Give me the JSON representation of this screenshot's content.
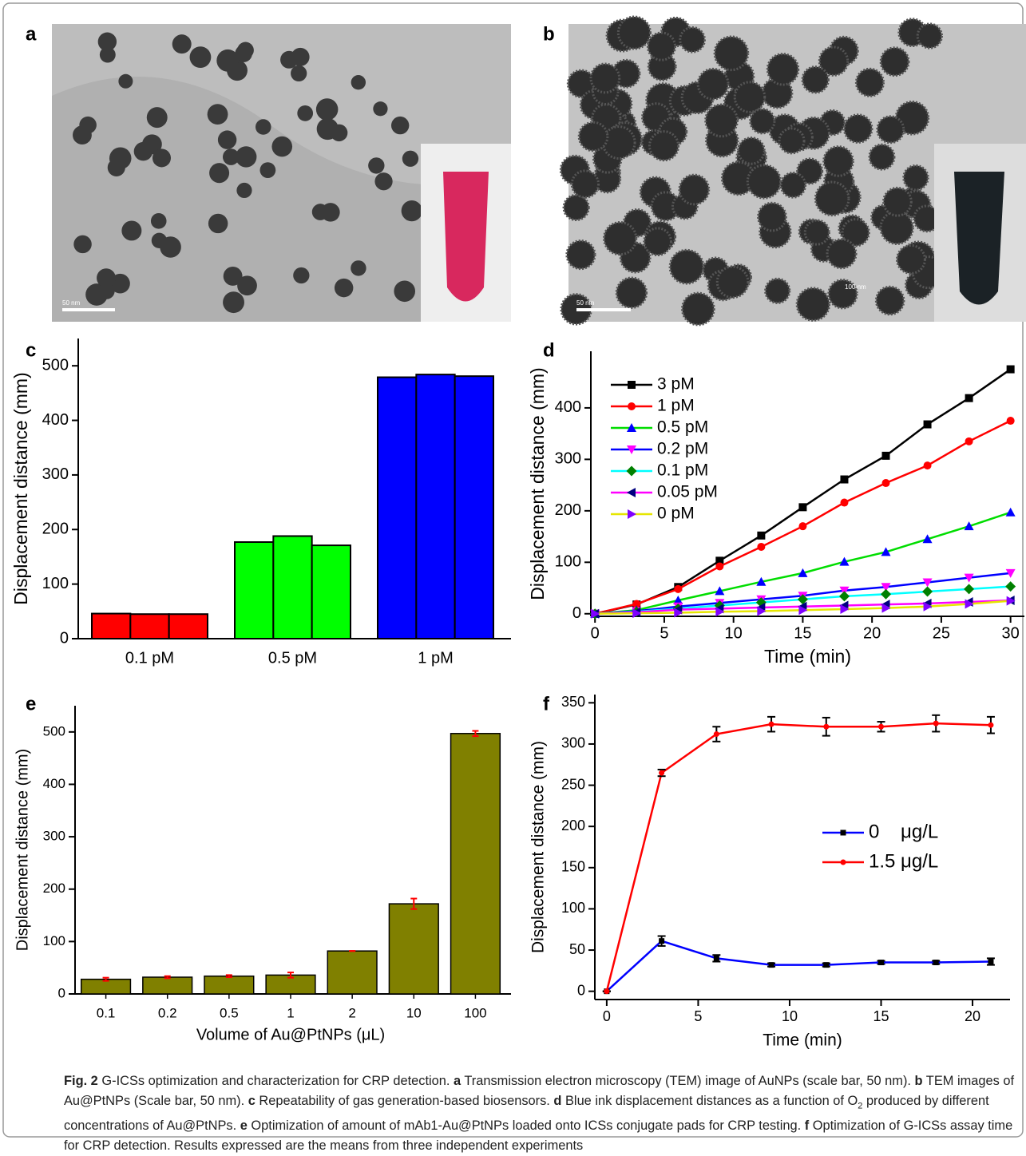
{
  "images": [
    {
      "label": "a",
      "scale_bar": "50 nm"
    },
    {
      "label": "b",
      "scale_bar": "50 nm",
      "marker_text": "100 nm"
    }
  ],
  "chart_data": [
    {
      "label": "c",
      "type": "bar",
      "categories": [
        "0.1 pM",
        "0.5 pM",
        "1 pM"
      ],
      "values": [
        [
          46,
          45,
          45
        ],
        [
          177,
          188,
          171
        ],
        [
          479,
          484,
          481
        ]
      ],
      "colors": [
        "#ff0000",
        "#00ff00",
        "#0000ff"
      ],
      "ylabel": "Displacement distance (mm)",
      "ylim": [
        0,
        550
      ],
      "yticks": [
        0,
        100,
        200,
        300,
        400,
        500
      ]
    },
    {
      "label": "d",
      "type": "line",
      "xlabel": "Time (min)",
      "ylabel": "Displacement distance (mm)",
      "x": [
        0,
        3,
        6,
        9,
        12,
        15,
        18,
        21,
        24,
        27,
        30
      ],
      "xlim": [
        -0.3,
        31
      ],
      "xticks": [
        0,
        5,
        10,
        15,
        20,
        25,
        30
      ],
      "ylim": [
        -5,
        510
      ],
      "yticks": [
        0,
        100,
        200,
        300,
        400
      ],
      "series": [
        {
          "name": "3 pM",
          "color": "#000000",
          "marker_color": "#000000",
          "marker": "square",
          "values": [
            0,
            18,
            52,
            103,
            152,
            207,
            261,
            307,
            368,
            419,
            475
          ]
        },
        {
          "name": "1 pM",
          "color": "#ff0000",
          "marker_color": "#ff0000",
          "marker": "circle",
          "values": [
            0,
            19,
            48,
            92,
            130,
            170,
            216,
            254,
            288,
            335,
            375
          ]
        },
        {
          "name": "0.5 pM",
          "color": "#00dd00",
          "marker_color": "#0000ff",
          "marker": "up",
          "values": [
            0,
            7,
            26,
            44,
            62,
            79,
            101,
            120,
            145,
            170,
            197
          ]
        },
        {
          "name": "0.2 pM",
          "color": "#0000ff",
          "marker_color": "#ff00ff",
          "marker": "down",
          "values": [
            0,
            5,
            14,
            21,
            28,
            35,
            45,
            52,
            61,
            70,
            79
          ]
        },
        {
          "name": "0.1 pM",
          "color": "#00ffff",
          "marker_color": "#008000",
          "marker": "diamond",
          "values": [
            0,
            4,
            10,
            16,
            22,
            28,
            34,
            38,
            43,
            48,
            53
          ]
        },
        {
          "name": "0.05 pM",
          "color": "#ff00ff",
          "marker_color": "#000080",
          "marker": "left",
          "values": [
            0,
            3,
            8,
            10,
            12,
            14,
            16,
            18,
            20,
            23,
            26
          ]
        },
        {
          "name": "0 pM",
          "color": "#e6e600",
          "marker_color": "#8000ff",
          "marker": "right",
          "values": [
            0,
            1,
            2,
            4,
            5,
            7,
            9,
            11,
            14,
            19,
            25
          ]
        }
      ]
    },
    {
      "label": "e",
      "type": "bar",
      "categories": [
        "0.1",
        "0.2",
        "0.5",
        "1",
        "2",
        "10",
        "100"
      ],
      "values": [
        28,
        32,
        34,
        36,
        82,
        172,
        497
      ],
      "errors": [
        3,
        2,
        2,
        5,
        0,
        10,
        5
      ],
      "color": "#808000",
      "error_color": "#ff0000",
      "xlabel": "Volume of Au@PtNPs (μL)",
      "ylabel": "Displacement distance (mm)",
      "ylim": [
        0,
        550
      ],
      "yticks": [
        0,
        100,
        200,
        300,
        400,
        500
      ]
    },
    {
      "label": "f",
      "type": "line",
      "xlabel": "Time (min)",
      "ylabel": "Displacement distance (mm)",
      "x": [
        0,
        3,
        6,
        9,
        12,
        15,
        18,
        21
      ],
      "xlim": [
        -0.65,
        22.05
      ],
      "xticks": [
        0,
        5,
        10,
        15,
        20
      ],
      "ylim": [
        -10,
        360
      ],
      "yticks": [
        0,
        50,
        100,
        150,
        200,
        250,
        300,
        350
      ],
      "error_color": "#000000",
      "series": [
        {
          "name": "0    μg/L",
          "color": "#0000ff",
          "marker_color": "#000000",
          "marker": "square",
          "values": [
            0,
            61,
            40,
            32,
            32,
            35,
            35,
            36
          ],
          "errors": [
            0,
            6,
            4,
            2,
            2,
            2,
            2,
            4
          ]
        },
        {
          "name": "1.5 μg/L",
          "color": "#ff0000",
          "marker_color": "#ff0000",
          "marker": "circle",
          "values": [
            0,
            265,
            312,
            324,
            321,
            321,
            325,
            323
          ],
          "errors": [
            0,
            4,
            9,
            9,
            11,
            6,
            10,
            10
          ]
        }
      ]
    }
  ],
  "caption": [
    {
      "text": "Fig. 2",
      "style": "bold"
    },
    {
      "text": "  G-ICSs optimization and characterization for CRP detection. "
    },
    {
      "text": "a",
      "style": "bold"
    },
    {
      "text": " Transmission electron microscopy (TEM) image of AuNPs (scale bar, 50 nm). "
    },
    {
      "text": "b",
      "style": "bold"
    },
    {
      "text": " TEM images of Au@PtNPs (Scale bar, 50 nm). "
    },
    {
      "text": "c",
      "style": "bold"
    },
    {
      "text": " Repeatability of gas generation-based biosensors. "
    },
    {
      "text": "d",
      "style": "bold"
    },
    {
      "text": " Blue ink displacement distances as a function of O"
    },
    {
      "text": "2",
      "style": "sub"
    },
    {
      "text": " produced by different concentrations of Au@PtNPs. "
    },
    {
      "text": "e",
      "style": "bold"
    },
    {
      "text": " Optimization of amount of mAb1-Au@PtNPs loaded onto ICSs conjugate pads for CRP testing. "
    },
    {
      "text": "f",
      "style": "bold"
    },
    {
      "text": " Optimization of G-ICSs assay time for CRP detection. Results expressed are the means from three independent experiments"
    }
  ]
}
